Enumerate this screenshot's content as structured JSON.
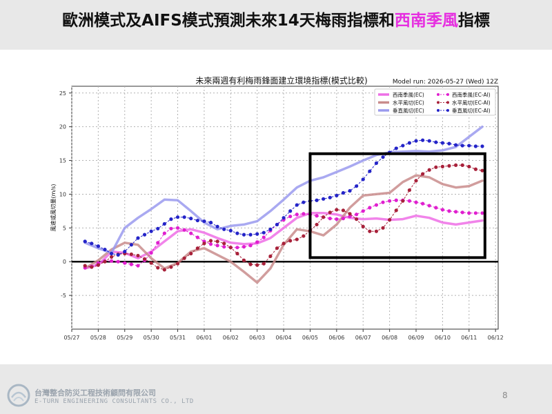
{
  "slide": {
    "title_main": "歐洲模式及AIFS模式預測未來14天梅雨指標和",
    "title_highlight": "西南季風",
    "title_end": "指標",
    "footer_company_cn": "台灣整合防災工程技術顧問有限公司",
    "footer_company_en": "E-TURN ENGINEERING CONSULTANTS CO., LTD",
    "page_number": "8"
  },
  "chart_data": {
    "type": "line",
    "title": "未來兩週有利梅雨鋒面建立環境指標(模式比較)",
    "run_label": "Model run: 2026-05-27 (Wed) 12Z",
    "ylabel": "風速或風切量(m/s)",
    "xlabel": "",
    "ylim": [
      -10,
      26
    ],
    "xlim": [
      0,
      16.1
    ],
    "yticks": [
      -5,
      0,
      5,
      10,
      15,
      20,
      25
    ],
    "xticks": [
      "05/27",
      "05/28",
      "05/29",
      "05/30",
      "05/31",
      "06/01",
      "06/02",
      "06/03",
      "06/04",
      "06/05",
      "06/06",
      "06/07",
      "06/08",
      "06/09",
      "06/10",
      "06/11",
      "06/12"
    ],
    "grid": true,
    "legend_position": "top-right",
    "highlight_box": {
      "x": [
        9,
        15.6
      ],
      "y": [
        0.6,
        16
      ]
    },
    "series": [
      {
        "name": "西南季風(EC)",
        "style": "thick-line",
        "color": "#ee6fe6",
        "x": [
          0.5,
          1,
          1.5,
          2,
          2.5,
          3,
          3.5,
          4,
          4.5,
          5,
          5.5,
          6,
          6.5,
          7,
          7.5,
          8,
          8.5,
          9,
          9.5,
          10,
          10.5,
          11,
          11.5,
          12,
          12.5,
          13,
          13.5,
          14,
          14.5,
          15,
          15.5
        ],
        "values": [
          -1,
          -0.5,
          1.5,
          1.3,
          0.5,
          1.5,
          3,
          4.5,
          4.8,
          4.3,
          3.5,
          2.8,
          2.6,
          2.7,
          3.5,
          5,
          6.5,
          7.2,
          7.2,
          7.0,
          6.5,
          6.3,
          6.4,
          6.2,
          6.3,
          6.8,
          6.5,
          5.8,
          5.5,
          5.8,
          6.1
        ]
      },
      {
        "name": "水平風切(EC)",
        "style": "thick-line",
        "color": "#c98c8c",
        "x": [
          0.5,
          1,
          1.5,
          2,
          2.5,
          3,
          3.5,
          4,
          4.5,
          5,
          5.5,
          6,
          6.5,
          7,
          7.5,
          8,
          8.5,
          9,
          9.5,
          10,
          10.5,
          11,
          11.5,
          12,
          12.5,
          13,
          13.5,
          14,
          14.5,
          15,
          15.5
        ],
        "values": [
          -1,
          0.2,
          1.8,
          2.8,
          2.5,
          0.5,
          -1,
          -0.2,
          1.5,
          2,
          1,
          0,
          -1.5,
          -3.1,
          -1,
          2.5,
          4.8,
          4.5,
          3.9,
          5.5,
          8,
          9.8,
          10,
          10.2,
          11.8,
          12.8,
          12.5,
          11.5,
          11.0,
          11.2,
          12
        ]
      },
      {
        "name": "垂直風切(EC)",
        "style": "thick-line",
        "color": "#9a9aee",
        "x": [
          0.5,
          1,
          1.5,
          2,
          2.5,
          3,
          3.5,
          4,
          4.5,
          5,
          5.5,
          6,
          6.5,
          7,
          7.5,
          8,
          8.5,
          9,
          9.5,
          10,
          10.5,
          11,
          11.5,
          12,
          12.5,
          13,
          13.5,
          14,
          14.5,
          15,
          15.5
        ],
        "values": [
          2.8,
          2,
          1.3,
          5,
          6.5,
          7.8,
          9.2,
          9.1,
          7.5,
          5.8,
          4.8,
          5.3,
          5.5,
          6,
          7.5,
          9.2,
          11,
          12,
          12.5,
          13.3,
          14.1,
          15,
          15.8,
          16.2,
          16.3,
          16.4,
          16.3,
          16.5,
          17,
          18.5,
          20
        ]
      },
      {
        "name": "西南季風(EC-AI)",
        "style": "dot-line",
        "color": "#e01fcf",
        "x": [
          0.5,
          0.75,
          1,
          1.25,
          1.5,
          1.75,
          2,
          2.25,
          2.5,
          2.75,
          3,
          3.25,
          3.5,
          3.75,
          4,
          4.25,
          4.5,
          4.75,
          5,
          5.25,
          5.5,
          5.75,
          6,
          6.25,
          6.5,
          6.75,
          7,
          7.25,
          7.5,
          7.75,
          8,
          8.25,
          8.5,
          8.75,
          9,
          9.25,
          9.5,
          9.75,
          10,
          10.25,
          10.5,
          10.75,
          11,
          11.25,
          11.5,
          11.75,
          12,
          12.25,
          12.5,
          12.75,
          13,
          13.25,
          13.5,
          13.75,
          14,
          14.25,
          14.5,
          14.75,
          15,
          15.25,
          15.5
        ],
        "values": [
          -0.9,
          -0.7,
          -0.2,
          0.1,
          0.1,
          0.0,
          -0.2,
          -0.4,
          -0.6,
          0.2,
          1.3,
          2.8,
          4.2,
          4.9,
          5,
          4.7,
          4.2,
          3.6,
          3.0,
          2.6,
          2.4,
          2.2,
          2.1,
          2.1,
          2.2,
          2.4,
          2.9,
          3.6,
          4.6,
          5.5,
          6.2,
          6.7,
          7.0,
          7.1,
          7.0,
          6.8,
          6.6,
          6.4,
          6.3,
          6.4,
          6.7,
          7.0,
          7.5,
          8.0,
          8.4,
          8.8,
          9.0,
          9.1,
          9.1,
          9.0,
          8.8,
          8.6,
          8.3,
          8.0,
          7.7,
          7.5,
          7.4,
          7.3,
          7.2,
          7.2,
          7.2
        ]
      },
      {
        "name": "水平風切(EC-AI)",
        "style": "dot-line",
        "color": "#a8213a",
        "x": [
          0.5,
          0.75,
          1,
          1.25,
          1.5,
          1.75,
          2,
          2.25,
          2.5,
          2.75,
          3,
          3.25,
          3.5,
          3.75,
          4,
          4.25,
          4.5,
          4.75,
          5,
          5.25,
          5.5,
          5.75,
          6,
          6.25,
          6.5,
          6.75,
          7,
          7.25,
          7.5,
          7.75,
          8,
          8.25,
          8.5,
          8.75,
          9,
          9.25,
          9.5,
          9.75,
          10,
          10.25,
          10.5,
          10.75,
          11,
          11.25,
          11.5,
          11.75,
          12,
          12.25,
          12.5,
          12.75,
          13,
          13.25,
          13.5,
          13.75,
          14,
          14.25,
          14.5,
          14.75,
          15,
          15.25,
          15.5
        ],
        "values": [
          -0.6,
          -0.8,
          -0.5,
          0.0,
          0.7,
          1.1,
          1.2,
          1.1,
          0.9,
          0.4,
          -0.2,
          -0.9,
          -1.2,
          -0.8,
          -0.3,
          0.5,
          1.2,
          2.0,
          2.7,
          3.1,
          3.0,
          2.7,
          2.1,
          1.2,
          0.2,
          -0.4,
          -0.5,
          -0.3,
          0.8,
          2.0,
          2.7,
          3.1,
          3.3,
          3.8,
          4.6,
          5.5,
          6.6,
          7.3,
          7.7,
          7.6,
          7.1,
          6.3,
          5.2,
          4.5,
          4.5,
          5.0,
          6.2,
          7.6,
          9.0,
          10.6,
          12.0,
          13.0,
          13.6,
          14.0,
          14.1,
          14.2,
          14.3,
          14.3,
          14.1,
          13.7,
          13.5
        ]
      },
      {
        "name": "垂直風切(EC-AI)",
        "style": "dot-line",
        "color": "#2424c8",
        "x": [
          0.5,
          0.75,
          1,
          1.25,
          1.5,
          1.75,
          2,
          2.25,
          2.5,
          2.75,
          3,
          3.25,
          3.5,
          3.75,
          4,
          4.25,
          4.5,
          4.75,
          5,
          5.25,
          5.5,
          5.75,
          6,
          6.25,
          6.5,
          6.75,
          7,
          7.25,
          7.5,
          7.75,
          8,
          8.25,
          8.5,
          8.75,
          9,
          9.25,
          9.5,
          9.75,
          10,
          10.25,
          10.5,
          10.75,
          11,
          11.25,
          11.5,
          11.75,
          12,
          12.25,
          12.5,
          12.75,
          13,
          13.25,
          13.5,
          13.75,
          14,
          14.25,
          14.5,
          14.75,
          15,
          15.25,
          15.5
        ],
        "values": [
          3.0,
          2.7,
          2.3,
          1.8,
          1.2,
          1.0,
          1.5,
          2.5,
          3.5,
          4.0,
          4.5,
          4.9,
          5.6,
          6.3,
          6.6,
          6.6,
          6.4,
          6.1,
          6.0,
          5.8,
          5.2,
          4.8,
          4.6,
          4.2,
          4.0,
          4.0,
          4.1,
          4.3,
          4.8,
          5.5,
          6.5,
          7.5,
          8.4,
          8.8,
          9.0,
          9.1,
          9.3,
          9.5,
          9.8,
          10.2,
          10.5,
          11.2,
          12.2,
          13.4,
          14.6,
          15.5,
          16.2,
          16.8,
          17.2,
          17.6,
          17.9,
          18.0,
          17.9,
          17.7,
          17.6,
          17.5,
          17.3,
          17.2,
          17.2,
          17.1,
          17.1
        ]
      }
    ]
  }
}
